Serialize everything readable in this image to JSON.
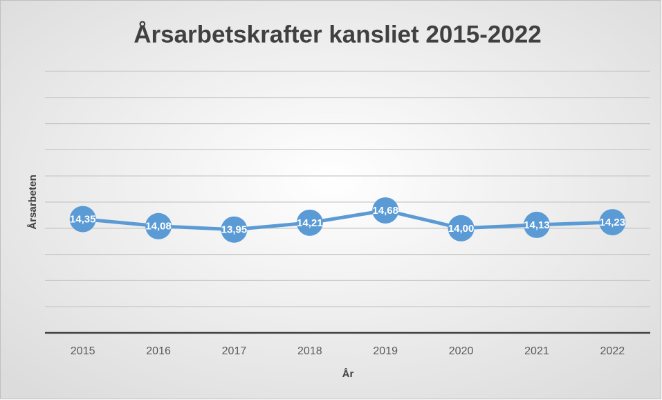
{
  "chart_data": {
    "type": "line",
    "title": "Årsarbetskrafter kansliet 2015-2022",
    "xlabel": "År",
    "ylabel": "Årsarbeten",
    "categories": [
      "2015",
      "2016",
      "2017",
      "2018",
      "2019",
      "2020",
      "2021",
      "2022"
    ],
    "series": [
      {
        "name": "Årsarbeten",
        "color": "#5b9bd5",
        "values": [
          14.35,
          14.08,
          13.95,
          14.21,
          14.68,
          14.0,
          14.13,
          14.23
        ],
        "value_labels": [
          "14,35",
          "14,08",
          "13,95",
          "14,21",
          "14,68",
          "14,00",
          "14,13",
          "14,23"
        ]
      }
    ],
    "ylim": [
      10,
      20
    ],
    "yticks": [
      10,
      11,
      12,
      13,
      14,
      15,
      16,
      17,
      18,
      19,
      20
    ],
    "grid": true
  }
}
